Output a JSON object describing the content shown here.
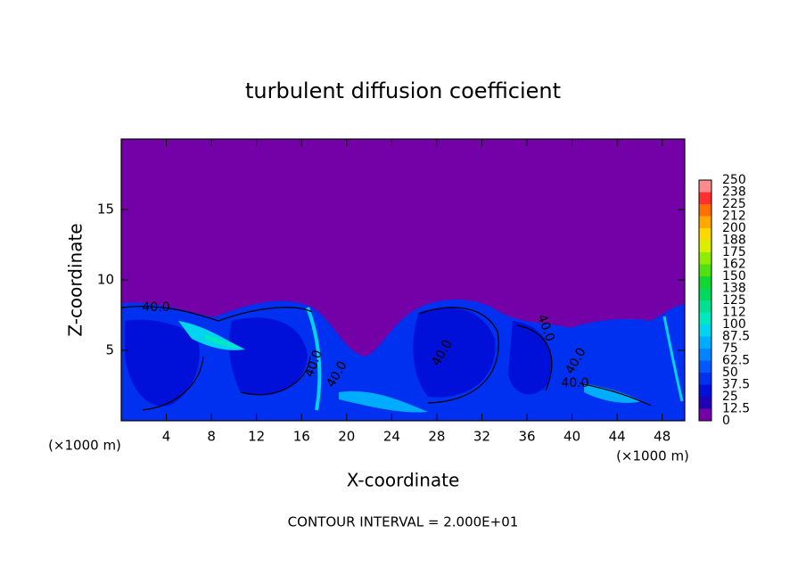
{
  "chart_data": {
    "type": "heatmap",
    "title": "turbulent diffusion coefficient",
    "x_label": "X-coordinate",
    "y_label": "Z-coordinate",
    "x_unit": "(×1000 m)",
    "y_unit": "(×1000 m)",
    "footnote": "CONTOUR INTERVAL = 2.000E+01",
    "xlim": [
      0,
      50
    ],
    "xticks": [
      4,
      8,
      12,
      16,
      20,
      24,
      28,
      32,
      36,
      40,
      44,
      48
    ],
    "ylim": [
      0,
      20
    ],
    "yticks": [
      5,
      10,
      15
    ],
    "contour_labels": [
      "40.0",
      "40.0",
      "40.0",
      "40.0",
      "40.0",
      "40.0",
      "40.0"
    ],
    "colorbar": {
      "levels": [
        0,
        12.5,
        25,
        37.5,
        50,
        62.5,
        75,
        87.5,
        100,
        112,
        125,
        138,
        150,
        162,
        175,
        188,
        200,
        212,
        225,
        238,
        250
      ],
      "colors": [
        "#7400a8",
        "#2000b4",
        "#0010d8",
        "#0030f0",
        "#0058ff",
        "#0084ff",
        "#00acff",
        "#00d4f0",
        "#00e8c0",
        "#00e090",
        "#00d860",
        "#10d830",
        "#50e010",
        "#90ec00",
        "#d8f000",
        "#ffd800",
        "#ffa800",
        "#ff7000",
        "#ff3030",
        "#ff8c8c"
      ]
    }
  }
}
